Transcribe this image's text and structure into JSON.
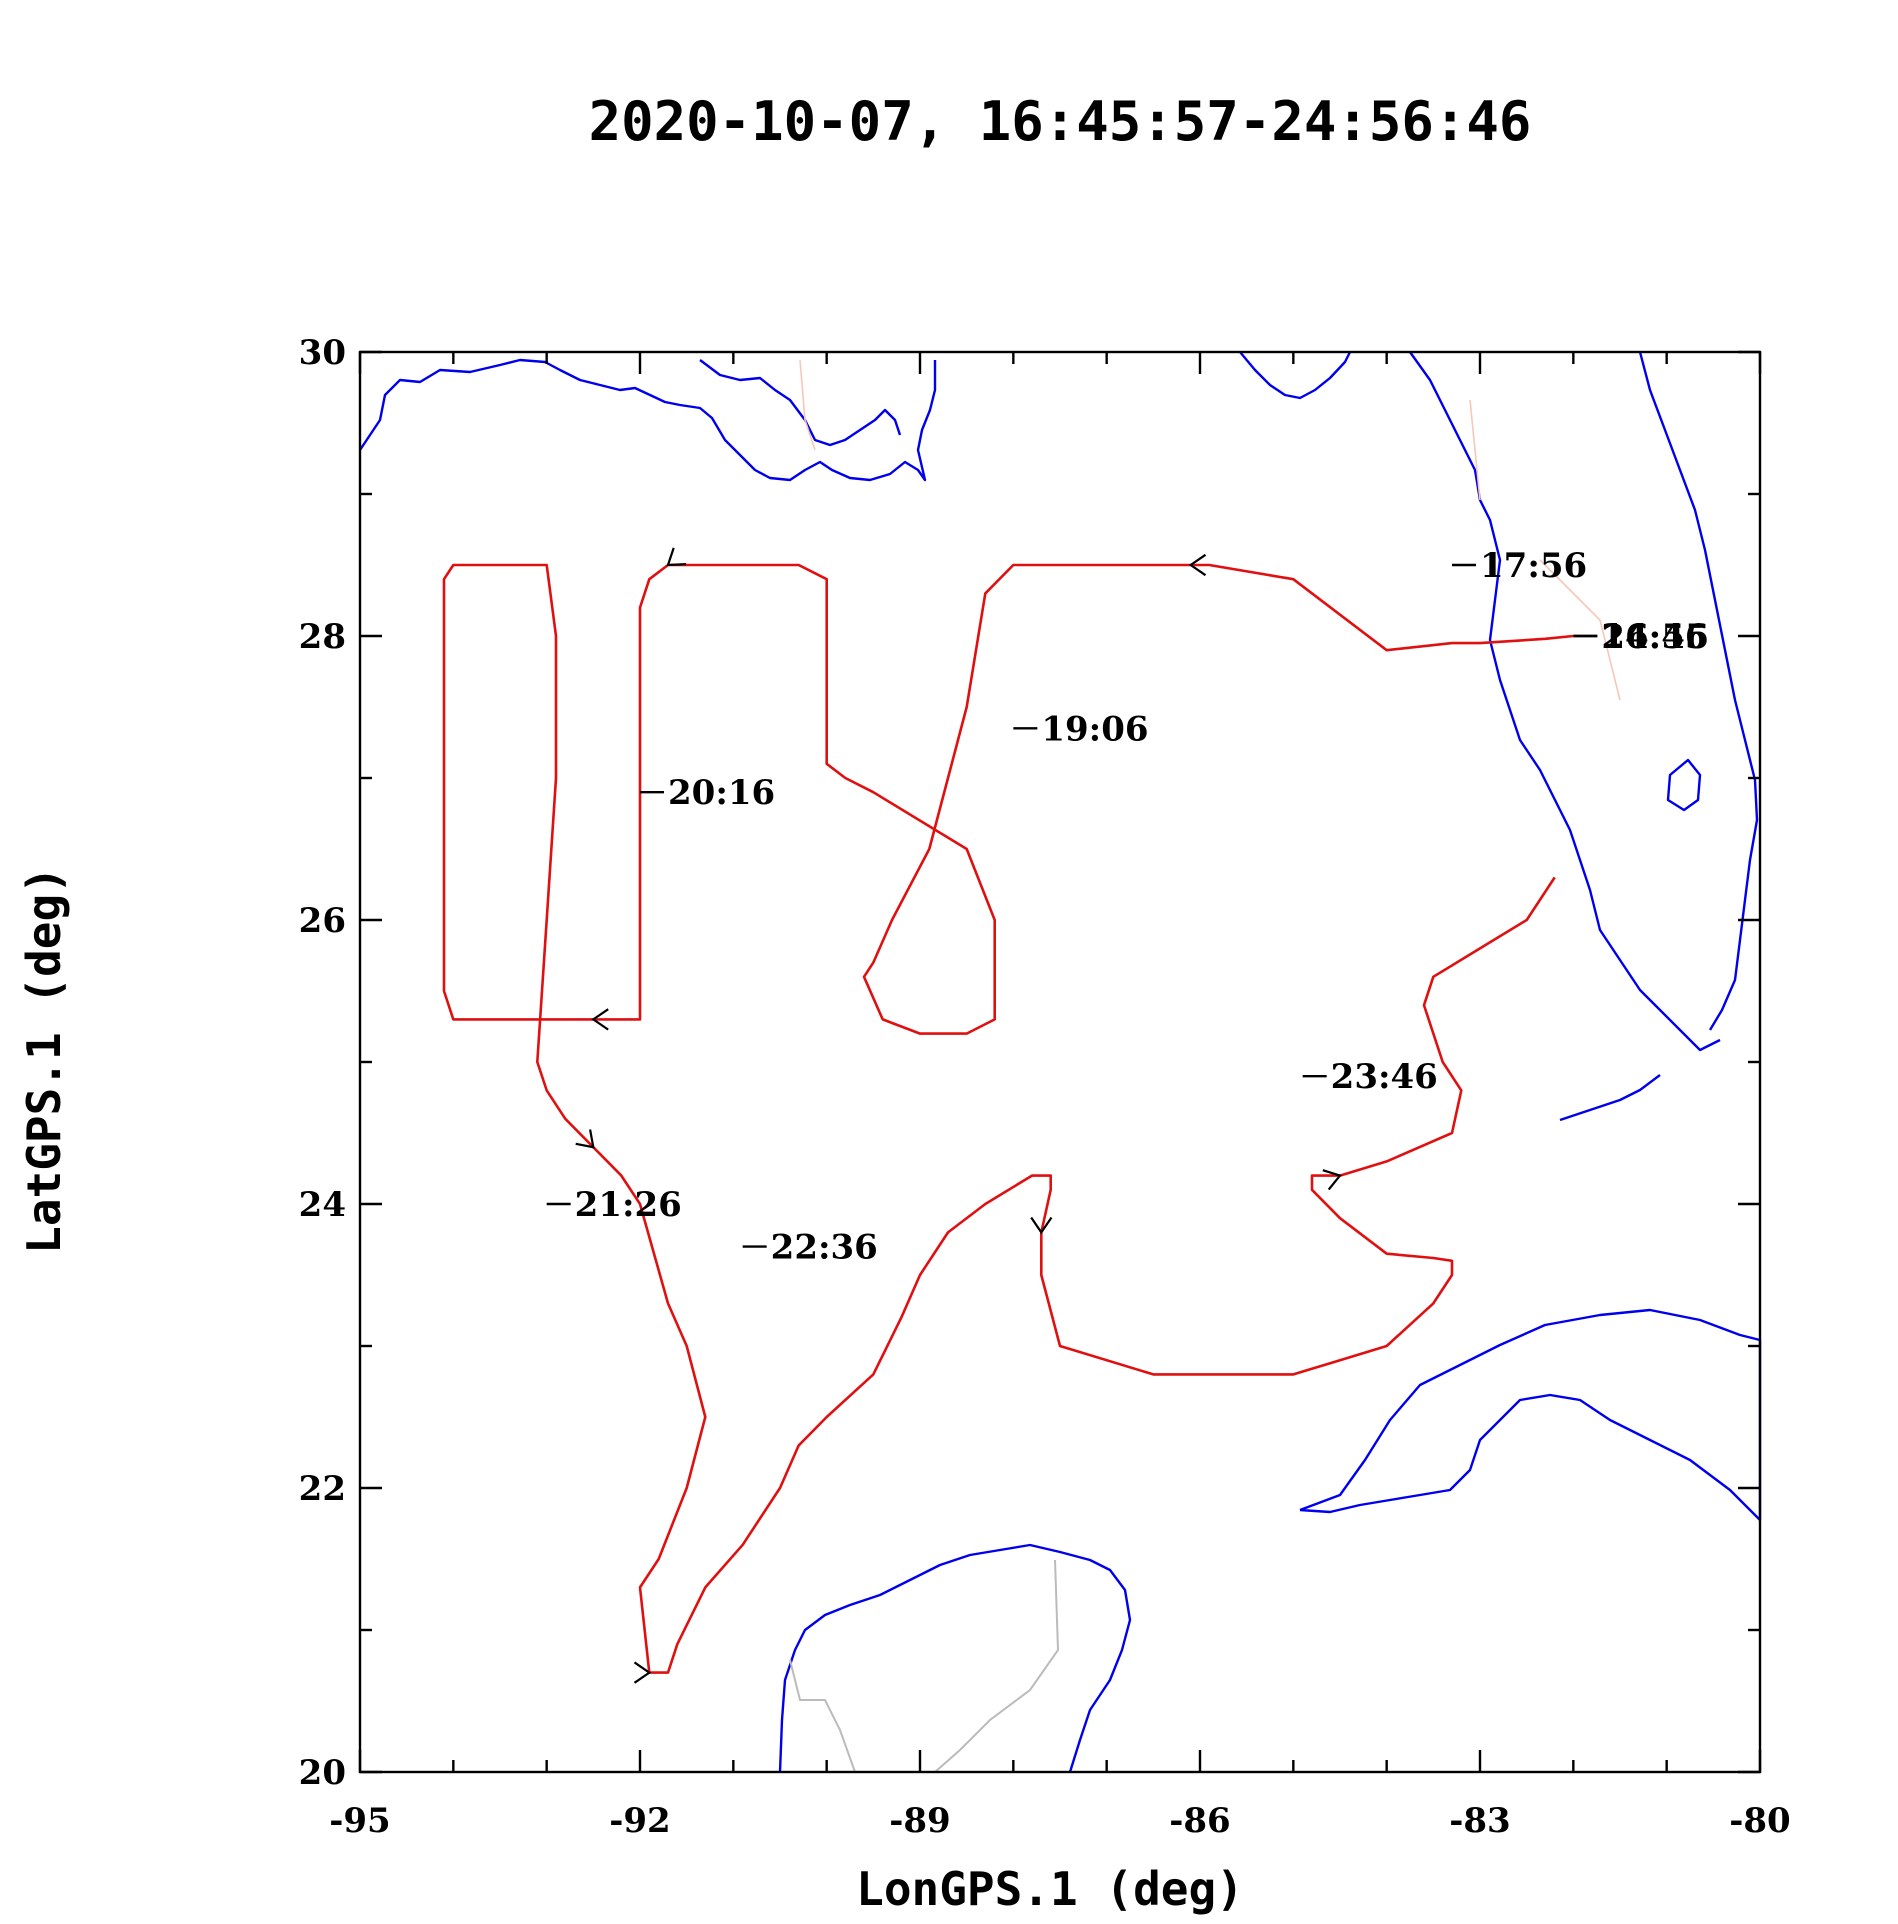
{
  "chart_data": {
    "type": "line",
    "title": "2020-10-07, 16:45:57-24:56:46",
    "xlabel": "LonGPS.1 (deg)",
    "ylabel": "LatGPS.1 (deg)",
    "xlim": [
      -95,
      -80
    ],
    "ylim": [
      20,
      30
    ],
    "xticks": [
      -95,
      -92,
      -89,
      -86,
      -83,
      -80
    ],
    "yticks": [
      20,
      22,
      24,
      26,
      28,
      30
    ],
    "grid": false,
    "colors": {
      "track": "#e01010",
      "coastline": "#0000ee",
      "borders": "#bbbbbb"
    },
    "series": [
      {
        "x": [
          -82.0,
          -82.3,
          -83.0,
          -83.3,
          -84.0,
          -85.0,
          -85.9,
          -86.0,
          -86.1,
          -86.3,
          -86.5,
          -86.6,
          -87.0,
          -87.5,
          -88.0,
          -88.3,
          -88.5,
          -88.7,
          -88.9,
          -89.3,
          -89.5,
          -89.6,
          -89.4,
          -89.0,
          -88.5,
          -88.2,
          -88.2,
          -88.5,
          -89.5,
          -89.8,
          -90.0,
          -90.0,
          -90.3,
          -90.6,
          -91.0,
          -91.3,
          -91.7,
          -91.9,
          -92.0,
          -92.0,
          -92.0,
          -92.0,
          -92.0,
          -92.0,
          -92.2,
          -92.5,
          -93.5,
          -94.0,
          -94.1,
          -94.1,
          -94.1,
          -94.1,
          -94.0,
          -93.8,
          -93.5,
          -93.2,
          -93.0,
          -92.9,
          -92.9,
          -93.0,
          -93.1,
          -93.0,
          -92.8,
          -92.5,
          -92.2,
          -92.0,
          -91.7,
          -91.5,
          -91.3,
          -91.5,
          -91.8,
          -92.0,
          -91.9,
          -91.7,
          -91.6,
          -91.3,
          -90.9,
          -90.5,
          -90.3,
          -90.0,
          -89.5,
          -89.2,
          -89.0,
          -88.7,
          -88.3,
          -87.8,
          -87.6,
          -87.6,
          -87.7,
          -87.7,
          -87.5,
          -86.5,
          -85.5,
          -85.0,
          -84.5,
          -84.0,
          -83.5,
          -83.3,
          -83.3,
          -83.5,
          -84.0,
          -84.5,
          -84.8,
          -84.8,
          -84.5,
          -84.0,
          -83.3,
          -83.2,
          -83.4,
          -83.6,
          -83.5,
          -83.0,
          -82.5,
          -82.2
        ],
        "y": [
          28.0,
          27.98,
          27.95,
          27.95,
          27.9,
          28.4,
          28.5,
          28.5,
          28.5,
          28.5,
          28.5,
          28.5,
          28.5,
          28.5,
          28.5,
          28.3,
          27.5,
          27.0,
          26.5,
          26.0,
          25.7,
          25.6,
          25.3,
          25.2,
          25.2,
          25.3,
          26.0,
          26.5,
          26.9,
          27.0,
          27.1,
          28.4,
          28.5,
          28.5,
          28.5,
          28.5,
          28.5,
          28.4,
          28.2,
          27.5,
          27.0,
          26.5,
          25.5,
          25.3,
          25.3,
          25.3,
          25.3,
          25.3,
          25.5,
          26.0,
          27.0,
          28.4,
          28.5,
          28.5,
          28.5,
          28.5,
          28.5,
          28.0,
          27.0,
          26.0,
          25.0,
          24.8,
          24.6,
          24.4,
          24.2,
          24.0,
          23.3,
          23.0,
          22.5,
          22.0,
          21.5,
          21.3,
          20.7,
          20.7,
          20.9,
          21.3,
          21.6,
          22.0,
          22.3,
          22.5,
          22.8,
          23.2,
          23.5,
          23.8,
          24.0,
          24.2,
          24.2,
          24.1,
          23.8,
          23.5,
          23.0,
          22.8,
          22.8,
          22.8,
          22.9,
          23.0,
          23.3,
          23.5,
          23.6,
          23.62,
          23.65,
          23.9,
          24.1,
          24.2,
          24.2,
          24.3,
          24.5,
          24.8,
          25.0,
          25.4,
          25.6,
          25.8,
          26.0,
          26.3
        ]
      }
    ],
    "annotations": [
      {
        "text": "17:56",
        "lon": -83.3,
        "lat": 28.5
      },
      {
        "text": "19:06",
        "lon": -88.0,
        "lat": 27.35
      },
      {
        "text": "20:16",
        "lon": -92.0,
        "lat": 26.9
      },
      {
        "text": "21:26",
        "lon": -93.0,
        "lat": 24.0
      },
      {
        "text": "22:36",
        "lon": -90.9,
        "lat": 23.7
      },
      {
        "text": "23:46",
        "lon": -84.9,
        "lat": 24.9
      },
      {
        "text": "16:45",
        "lon": -82.0,
        "lat": 28.0
      },
      {
        "text": "24:56",
        "lon": -82.0,
        "lat": 28.0
      }
    ]
  }
}
